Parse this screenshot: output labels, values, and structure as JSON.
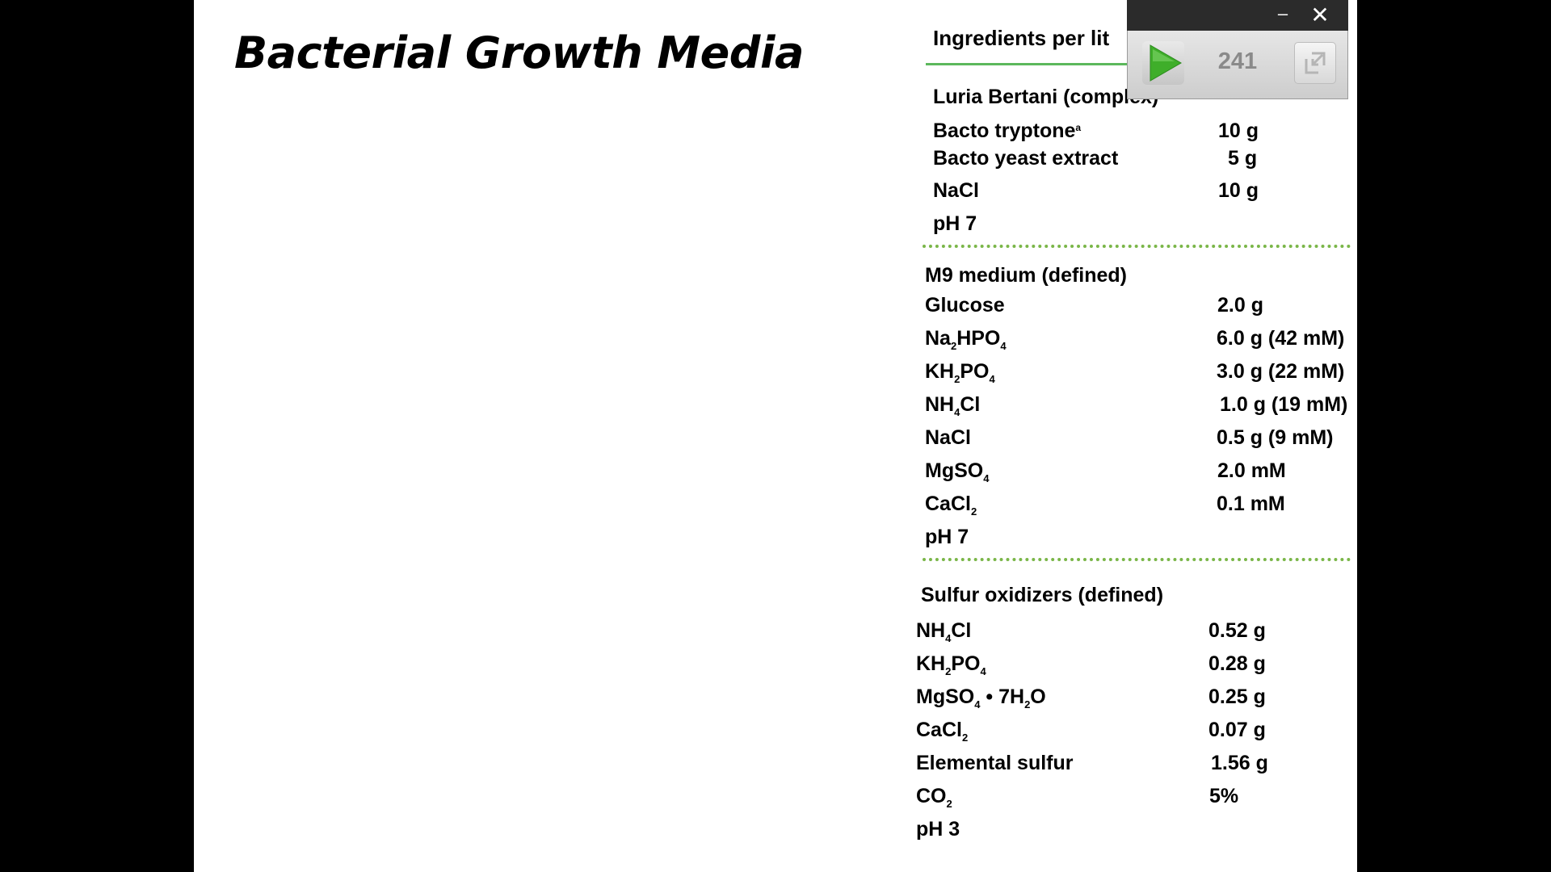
{
  "slide": {
    "title": "Bacterial Growth Media",
    "header": "Ingredients per lit",
    "sections": [
      {
        "title": "Luria Bertani (complex)",
        "rows": [
          {
            "name": "Bacto tryptone",
            "sup": "a",
            "amount": "10 g"
          },
          {
            "name": "Bacto yeast extract",
            "amount": "5 g"
          },
          {
            "name": "NaCl",
            "amount": "10 g"
          },
          {
            "name": "pH 7",
            "amount": ""
          }
        ]
      },
      {
        "title": "M9 medium (defined)",
        "rows": [
          {
            "name": "Glucose",
            "amount": "2.0 g"
          },
          {
            "name": "Na",
            "parts": [
              "Na",
              "2",
              "HPO",
              "4"
            ],
            "amount": "6.0 g (42 mM)"
          },
          {
            "name": "KH",
            "parts": [
              "KH",
              "2",
              "PO",
              "4"
            ],
            "amount": "3.0 g (22 mM)"
          },
          {
            "name": "NH",
            "parts": [
              "NH",
              "4",
              "Cl",
              ""
            ],
            "amount": "1.0 g (19 mM)"
          },
          {
            "name": "NaCl",
            "amount": "0.5 g (9 mM)"
          },
          {
            "name": "MgSO",
            "parts": [
              "MgSO",
              "4",
              "",
              ""
            ],
            "amount": "2.0 mM"
          },
          {
            "name": "CaCl",
            "parts": [
              "CaCl",
              "2",
              "",
              ""
            ],
            "amount": "0.1 mM"
          },
          {
            "name": "pH 7",
            "amount": ""
          }
        ]
      },
      {
        "title": "Sulfur oxidizers (defined)",
        "rows": [
          {
            "name": "NH",
            "parts": [
              "NH",
              "4",
              "Cl",
              ""
            ],
            "amount": "0.52 g"
          },
          {
            "name": "KH",
            "parts": [
              "KH",
              "2",
              "PO",
              "4"
            ],
            "amount": "0.28 g"
          },
          {
            "name": "MgSO",
            "parts": [
              "MgSO",
              "4",
              " • 7H",
              "2",
              "O"
            ],
            "amount": "0.25 g"
          },
          {
            "name": "CaCl",
            "parts": [
              "CaCl",
              "2",
              "",
              ""
            ],
            "amount": "0.07 g"
          },
          {
            "name": "Elemental sulfur",
            "amount": "1.56 g"
          },
          {
            "name": "CO",
            "parts": [
              "CO",
              "2",
              "",
              ""
            ],
            "amount": "5%"
          },
          {
            "name": "pH 3",
            "amount": ""
          }
        ]
      }
    ]
  },
  "player": {
    "counter": "241",
    "minimize_label": "–",
    "close_label": "✕",
    "play_icon": "play-icon",
    "expand_icon": "expand-icon",
    "accent": "#3fae2a"
  }
}
